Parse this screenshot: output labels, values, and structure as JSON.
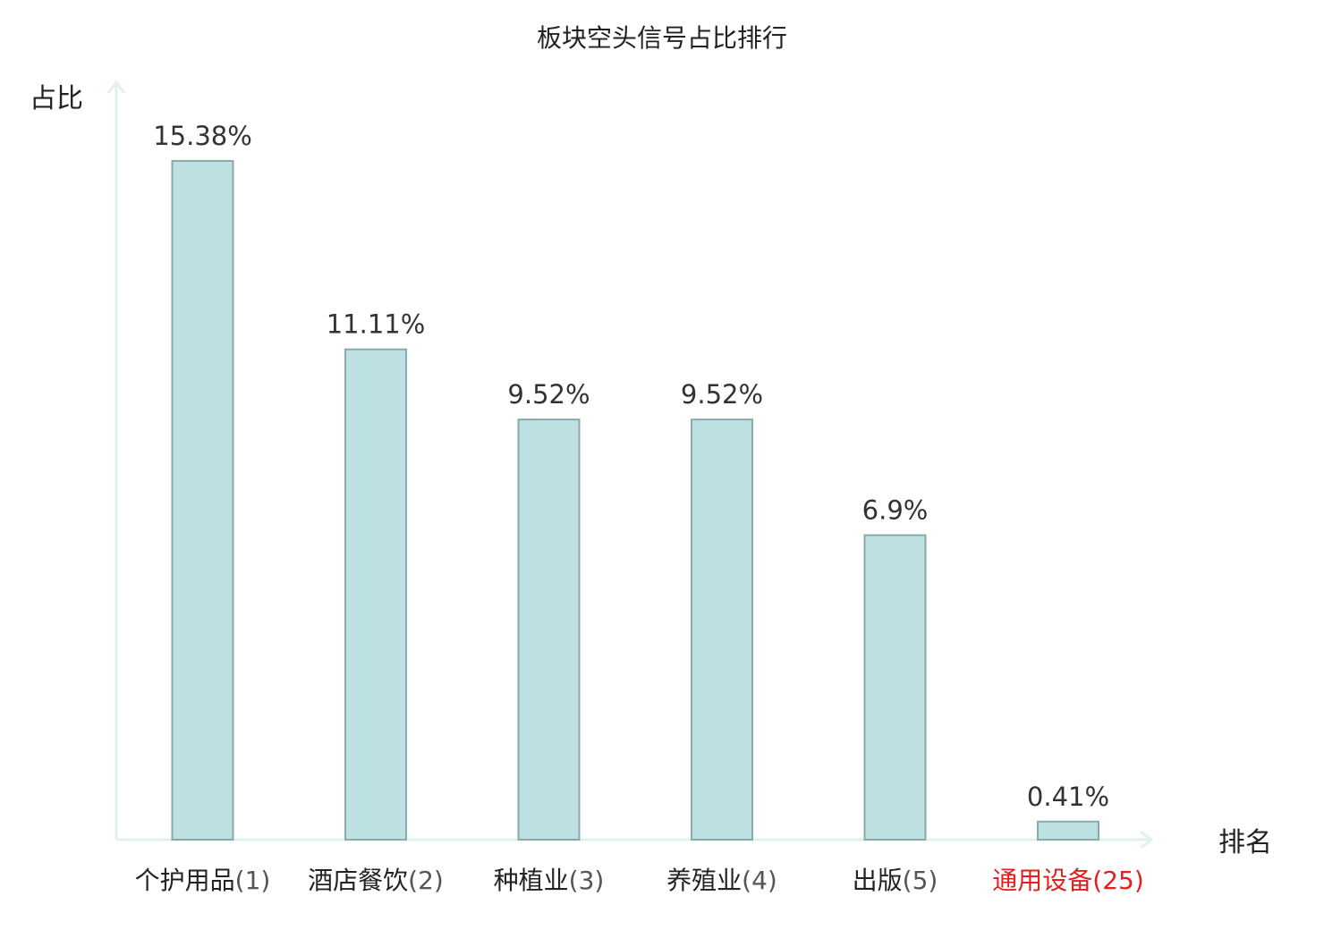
{
  "chart_data": {
    "type": "bar",
    "title": "板块空头信号占比排行",
    "xlabel": "排名",
    "ylabel": "占比",
    "categories": [
      {
        "name": "个护用品",
        "rank": "(1)",
        "highlight": false
      },
      {
        "name": "酒店餐饮",
        "rank": "(2)",
        "highlight": false
      },
      {
        "name": "种植业",
        "rank": "(3)",
        "highlight": false
      },
      {
        "name": "养殖业",
        "rank": "(4)",
        "highlight": false
      },
      {
        "name": "出版",
        "rank": "(5)",
        "highlight": false
      },
      {
        "name": "通用设备",
        "rank": "(25)",
        "highlight": true
      }
    ],
    "values": [
      15.38,
      11.11,
      9.52,
      9.52,
      6.9,
      0.41
    ],
    "value_labels": [
      "15.38%",
      "11.11%",
      "9.52%",
      "9.52%",
      "6.9%",
      "0.41%"
    ],
    "ylim": [
      0,
      17
    ],
    "grid": false,
    "colors": {
      "bar_fill": "#bde0e2",
      "bar_stroke": "#8aa9ab",
      "axis": "#e0f2ef",
      "label_name": "#222222",
      "label_rank": "#555555",
      "highlight": "#e02020"
    }
  }
}
